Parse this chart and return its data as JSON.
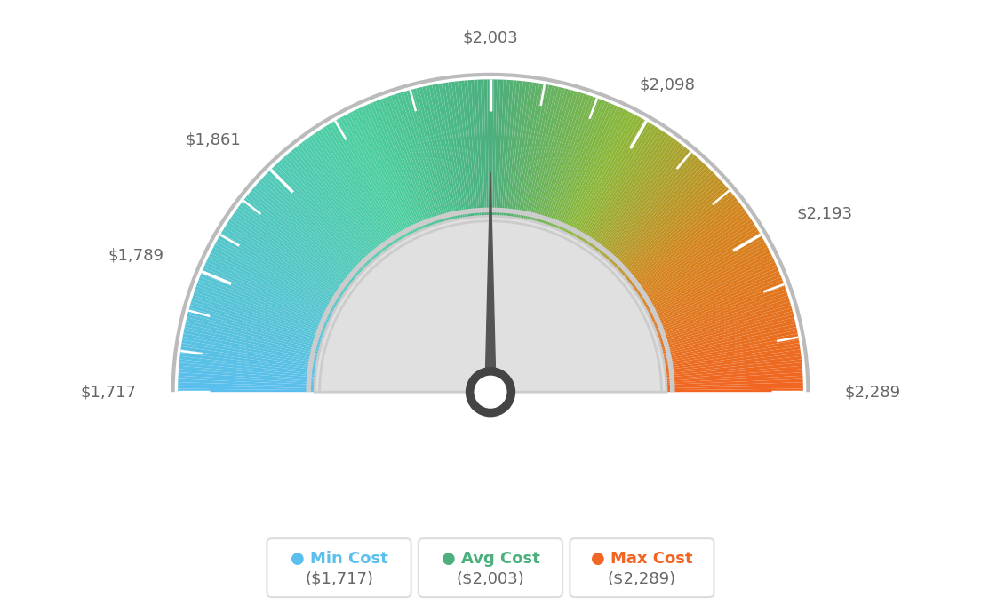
{
  "min_val": 1717,
  "max_val": 2289,
  "avg_val": 2003,
  "labels": {
    "1717": "$1,717",
    "1789": "$1,789",
    "1861": "$1,861",
    "2003": "$2,003",
    "2098": "$2,098",
    "2193": "$2,193",
    "2289": "$2,289"
  },
  "legend": [
    {
      "label": "Min Cost",
      "value": "($1,717)",
      "color": "#5bbfee"
    },
    {
      "label": "Avg Cost",
      "value": "($2,003)",
      "color": "#4caf7d"
    },
    {
      "label": "Max Cost",
      "value": "($2,289)",
      "color": "#f26522"
    }
  ],
  "colors": {
    "needle": "#555555",
    "hub": "#444444",
    "hub_inner": "#ffffff",
    "background": "#ffffff",
    "label_color": "#666666",
    "legend_label_color_min": "#5bbfee",
    "legend_label_color_avg": "#4caf7d",
    "legend_label_color_max": "#f26522",
    "legend_value_color": "#666666"
  },
  "gradient_stops": [
    [
      0.0,
      "#5bbfee"
    ],
    [
      0.35,
      "#4ecfa0"
    ],
    [
      0.5,
      "#4caf7d"
    ],
    [
      0.65,
      "#8db83a"
    ],
    [
      0.8,
      "#d4851e"
    ],
    [
      1.0,
      "#f26522"
    ]
  ]
}
